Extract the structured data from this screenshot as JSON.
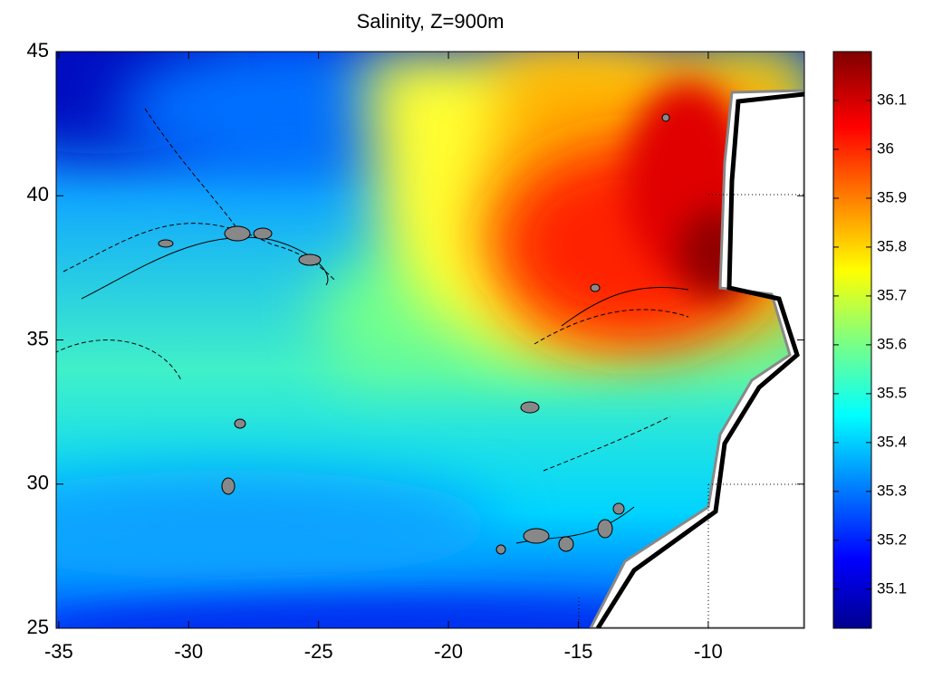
{
  "chart_data": {
    "type": "map",
    "title": "Salinity, Z=900m",
    "xlim": [
      -35.1,
      -6.3
    ],
    "ylim": [
      25,
      45
    ],
    "xticks": [
      -35,
      -30,
      -25,
      -20,
      -15,
      -10
    ],
    "yticks": [
      25,
      30,
      35,
      40,
      45
    ],
    "colorbar": {
      "clim": [
        35.02,
        36.2
      ],
      "colormap": "jet",
      "ticks": [
        35.1,
        35.2,
        35.3,
        35.4,
        35.5,
        35.6,
        35.7,
        35.8,
        35.9,
        36,
        36.1
      ]
    }
  }
}
